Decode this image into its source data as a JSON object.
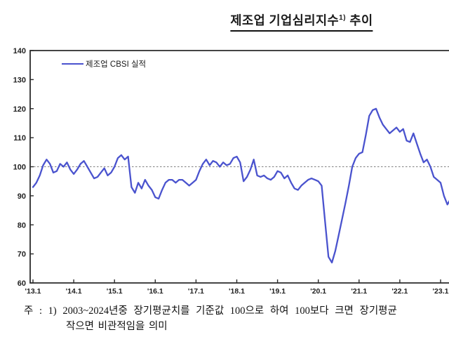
{
  "title": {
    "main": "제조업 기업심리지수",
    "sup": "1)",
    "tail": " 추이"
  },
  "legend": {
    "label": "제조업 CBSI 실적"
  },
  "footnote": {
    "line1": "주 : 1) 2003~2024년중 장기평균치를 기준값 100으로 하여 100보다 크면 장기평균",
    "line2": "작으면 비관적임을 의미"
  },
  "chart_data": {
    "type": "line",
    "title": "제조업 기업심리지수 추이",
    "x_tick_labels": [
      "'13.1",
      "'14.1",
      "'15.1",
      "'16.1",
      "'17.1",
      "'18.1",
      "'19.1",
      "'20.1",
      "'21.1",
      "'22.1",
      "'23.1"
    ],
    "x_ticks_every_months": 12,
    "ylim": [
      60,
      140
    ],
    "y_ticks": [
      60,
      70,
      80,
      90,
      100,
      110,
      120,
      130,
      140
    ],
    "reference_line": {
      "value": 100,
      "style": "dashed",
      "color": "#808080"
    },
    "grid": false,
    "legend_position": "top-left-inside",
    "axis_color": "#2b2b2b",
    "series": [
      {
        "name": "제조업 CBSI 실적",
        "color": "#4a53ce",
        "start": "2013-01",
        "frequency": "monthly",
        "values": [
          93,
          94.5,
          97,
          100.5,
          102.5,
          101,
          98,
          98.5,
          101,
          100,
          101.5,
          99,
          97.5,
          99,
          101,
          102,
          100,
          98,
          96,
          96.5,
          98,
          99.5,
          97,
          98,
          100,
          103,
          104,
          102.5,
          103.5,
          93,
          91,
          94.5,
          92.5,
          95.5,
          93.5,
          92,
          89.5,
          89,
          92,
          94.5,
          95.5,
          95.5,
          94.5,
          95.5,
          95.5,
          94.5,
          93.5,
          94.5,
          95.5,
          98.5,
          101,
          102.5,
          100.5,
          102,
          101.5,
          100,
          101.5,
          100.5,
          101,
          103,
          103.5,
          101.5,
          95,
          96.5,
          99,
          102.5,
          97,
          96.5,
          97,
          96,
          95.5,
          96.5,
          98.5,
          98,
          96,
          97,
          94.5,
          92.5,
          92,
          93.5,
          94.5,
          95.5,
          96,
          95.5,
          95,
          93.5,
          81,
          69,
          67,
          71,
          76.5,
          82,
          87.5,
          93.5,
          100,
          103,
          104.5,
          105,
          111,
          117.5,
          119.5,
          120,
          117,
          114.5,
          113,
          111.5,
          112.5,
          113.5,
          112,
          113,
          109,
          108.5,
          111.5,
          108,
          104.5,
          101.5,
          102.5,
          100,
          96.5,
          95.5,
          94.5,
          90,
          87,
          89
        ]
      }
    ]
  }
}
